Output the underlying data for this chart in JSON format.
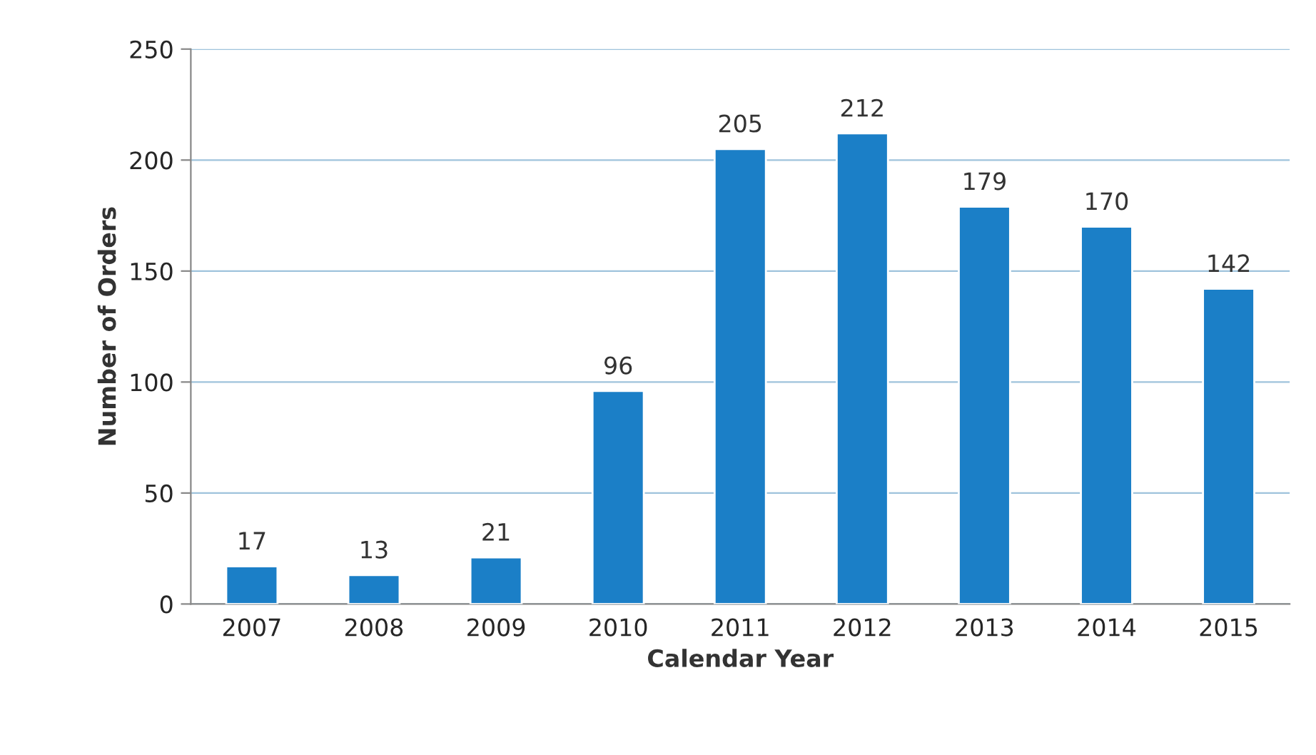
{
  "chart_data": {
    "type": "bar",
    "xlabel": "Calendar Year",
    "ylabel": "Number of Orders",
    "categories": [
      "2007",
      "2008",
      "2009",
      "2010",
      "2011",
      "2012",
      "2013",
      "2014",
      "2015"
    ],
    "values": [
      17,
      13,
      21,
      96,
      205,
      212,
      179,
      170,
      142
    ],
    "color": "#1b7fc7",
    "ylim": [
      0,
      250
    ],
    "yticks": [
      0,
      50,
      100,
      150,
      200,
      250
    ],
    "grid": "y",
    "data_labels": true
  }
}
